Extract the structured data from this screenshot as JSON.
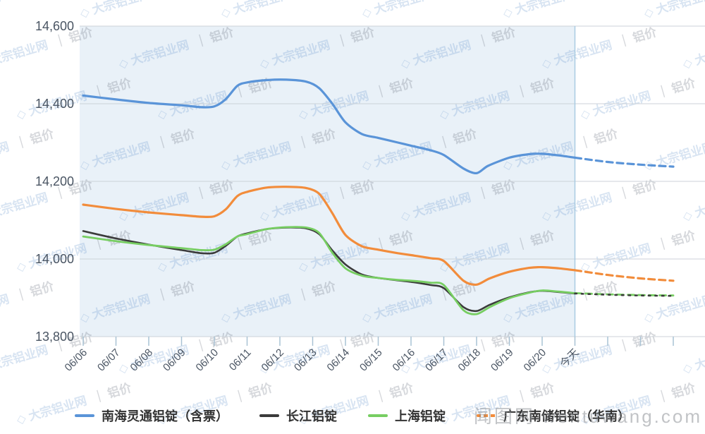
{
  "watermarks": {
    "tile_brand": "大宗铝业网",
    "tile_price": "铝价",
    "corner": "闻图网 wentuwang.com"
  },
  "chart_data": {
    "type": "line",
    "title": "",
    "xlabel": "",
    "ylabel": "",
    "x_labels": [
      "06/06",
      "06/07",
      "06/08",
      "06/09",
      "06/10",
      "06/11",
      "06/12",
      "06/13",
      "06/14",
      "06/15",
      "06/16",
      "06/17",
      "06/18",
      "06/19",
      "06/20",
      "今天"
    ],
    "extra_unlabeled_ticks": 3,
    "ylim": [
      13800,
      14600
    ],
    "y_ticks": [
      14600,
      14400,
      14200,
      14000,
      13800
    ],
    "y_tick_labels": [
      "14,600",
      "14,400",
      "14,200",
      "14,000",
      "13,800"
    ],
    "grid": "horizontal",
    "legend_position": "bottom",
    "shaded_region": "06/06 through 今天",
    "forecast_start_index": 15,
    "series": [
      {
        "name": "南海灵通铝锭（含票）",
        "color": "#5A94D8",
        "width": 3.2,
        "forecast": "dashed",
        "legend_dashed": false,
        "points": [
          [
            0,
            14421
          ],
          [
            1,
            14411
          ],
          [
            2,
            14402
          ],
          [
            3,
            14396
          ],
          [
            3.6,
            14391
          ],
          [
            4,
            14393
          ],
          [
            4.35,
            14412
          ],
          [
            4.7,
            14446
          ],
          [
            5,
            14455
          ],
          [
            5.6,
            14461
          ],
          [
            6.2,
            14462
          ],
          [
            6.8,
            14457
          ],
          [
            7.2,
            14440
          ],
          [
            7.6,
            14400
          ],
          [
            8,
            14352
          ],
          [
            8.5,
            14322
          ],
          [
            9,
            14312
          ],
          [
            9.6,
            14300
          ],
          [
            10,
            14292
          ],
          [
            10.6,
            14280
          ],
          [
            11,
            14268
          ],
          [
            11.6,
            14233
          ],
          [
            12,
            14221
          ],
          [
            12.35,
            14240
          ],
          [
            13,
            14261
          ],
          [
            13.6,
            14270
          ],
          [
            14,
            14271
          ],
          [
            14.5,
            14267
          ],
          [
            15,
            14261
          ],
          [
            16,
            14250
          ],
          [
            17,
            14243
          ],
          [
            18,
            14238
          ]
        ]
      },
      {
        "name": "长江铝锭",
        "color": "#3B3B3B",
        "width": 2.6,
        "forecast": "dotted",
        "legend_dashed": false,
        "points": [
          [
            0,
            14072
          ],
          [
            1,
            14053
          ],
          [
            2,
            14037
          ],
          [
            3,
            14023
          ],
          [
            3.6,
            14015
          ],
          [
            4,
            14016
          ],
          [
            4.35,
            14034
          ],
          [
            4.7,
            14058
          ],
          [
            5,
            14066
          ],
          [
            5.6,
            14077
          ],
          [
            6.2,
            14081
          ],
          [
            6.8,
            14079
          ],
          [
            7.2,
            14064
          ],
          [
            7.6,
            14022
          ],
          [
            8,
            13986
          ],
          [
            8.5,
            13960
          ],
          [
            9,
            13951
          ],
          [
            9.6,
            13945
          ],
          [
            10,
            13941
          ],
          [
            10.6,
            13933
          ],
          [
            11,
            13925
          ],
          [
            11.6,
            13876
          ],
          [
            12,
            13866
          ],
          [
            12.4,
            13882
          ],
          [
            13,
            13901
          ],
          [
            13.6,
            13914
          ],
          [
            14,
            13918
          ],
          [
            14.5,
            13915
          ],
          [
            15,
            13911
          ],
          [
            16,
            13908
          ],
          [
            17,
            13906
          ],
          [
            18,
            13905
          ]
        ]
      },
      {
        "name": "上海铝锭",
        "color": "#77CE62",
        "width": 2.8,
        "forecast": "dashed",
        "legend_dashed": false,
        "points": [
          [
            0,
            14058
          ],
          [
            1,
            14046
          ],
          [
            2,
            14036
          ],
          [
            3,
            14028
          ],
          [
            3.6,
            14023
          ],
          [
            4,
            14024
          ],
          [
            4.35,
            14038
          ],
          [
            4.7,
            14058
          ],
          [
            5,
            14064
          ],
          [
            5.6,
            14077
          ],
          [
            6.2,
            14082
          ],
          [
            6.8,
            14081
          ],
          [
            7.2,
            14067
          ],
          [
            7.6,
            14016
          ],
          [
            8,
            13976
          ],
          [
            8.5,
            13957
          ],
          [
            9,
            13951
          ],
          [
            9.6,
            13946
          ],
          [
            10,
            13944
          ],
          [
            10.6,
            13939
          ],
          [
            11,
            13933
          ],
          [
            11.6,
            13868
          ],
          [
            12,
            13858
          ],
          [
            12.4,
            13876
          ],
          [
            13,
            13899
          ],
          [
            13.6,
            13913
          ],
          [
            14,
            13919
          ],
          [
            14.5,
            13916
          ],
          [
            15,
            13912
          ],
          [
            16,
            13909
          ],
          [
            17,
            13907
          ],
          [
            18,
            13906
          ]
        ]
      },
      {
        "name": "广东南储铝锭（华南）",
        "color": "#F28C3B",
        "width": 3.2,
        "forecast": "dashed",
        "legend_dashed": true,
        "points": [
          [
            0,
            14140
          ],
          [
            1,
            14129
          ],
          [
            2,
            14120
          ],
          [
            3,
            14113
          ],
          [
            3.6,
            14109
          ],
          [
            4,
            14110
          ],
          [
            4.35,
            14128
          ],
          [
            4.7,
            14162
          ],
          [
            5,
            14173
          ],
          [
            5.6,
            14184
          ],
          [
            6.2,
            14186
          ],
          [
            6.8,
            14183
          ],
          [
            7.2,
            14168
          ],
          [
            7.6,
            14118
          ],
          [
            8,
            14062
          ],
          [
            8.5,
            14033
          ],
          [
            9,
            14024
          ],
          [
            9.6,
            14015
          ],
          [
            10,
            14010
          ],
          [
            10.6,
            14002
          ],
          [
            11,
            13995
          ],
          [
            11.6,
            13944
          ],
          [
            12,
            13934
          ],
          [
            12.4,
            13950
          ],
          [
            13,
            13967
          ],
          [
            13.6,
            13977
          ],
          [
            14,
            13979
          ],
          [
            14.5,
            13976
          ],
          [
            15,
            13971
          ],
          [
            16,
            13959
          ],
          [
            17,
            13950
          ],
          [
            18,
            13944
          ]
        ]
      }
    ]
  }
}
